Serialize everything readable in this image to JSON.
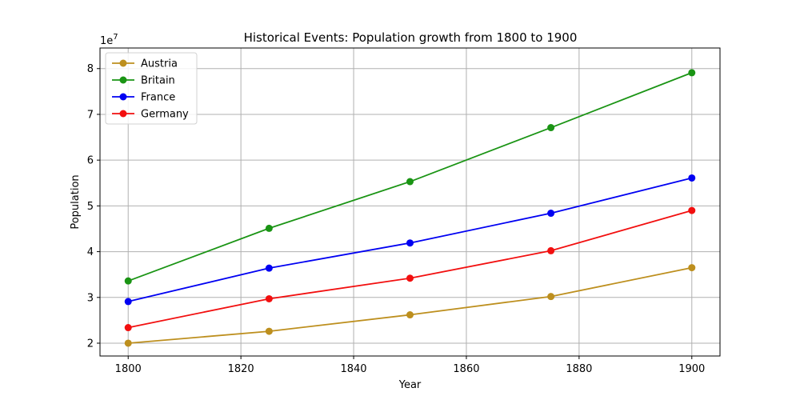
{
  "chart_data": {
    "type": "line",
    "title": "Historical Events: Population growth from 1800 to 1900",
    "xlabel": "Year",
    "ylabel": "Population",
    "y_multiplier_label": "1e7",
    "x": [
      1800,
      1825,
      1850,
      1875,
      1900
    ],
    "xlim": [
      1795,
      1905
    ],
    "ylim": [
      17200000,
      84500000
    ],
    "x_ticks": [
      1800,
      1820,
      1840,
      1860,
      1880,
      1900
    ],
    "y_ticks": [
      20000000,
      30000000,
      40000000,
      50000000,
      60000000,
      70000000,
      80000000
    ],
    "y_tick_labels": [
      "2",
      "3",
      "4",
      "5",
      "6",
      "7",
      "8"
    ],
    "grid": true,
    "legend_position": "top-left",
    "series": [
      {
        "name": "Austria",
        "color": "#bd8f1e",
        "values": [
          20000000,
          22600000,
          26200000,
          30200000,
          36500000
        ]
      },
      {
        "name": "Britain",
        "color": "#1a9414",
        "values": [
          33600000,
          45100000,
          55300000,
          67100000,
          79100000
        ]
      },
      {
        "name": "France",
        "color": "#0000f2",
        "values": [
          29100000,
          36400000,
          41900000,
          48400000,
          56100000
        ]
      },
      {
        "name": "Germany",
        "color": "#f20f0f",
        "values": [
          23400000,
          29700000,
          34200000,
          40200000,
          49000000
        ]
      }
    ]
  }
}
